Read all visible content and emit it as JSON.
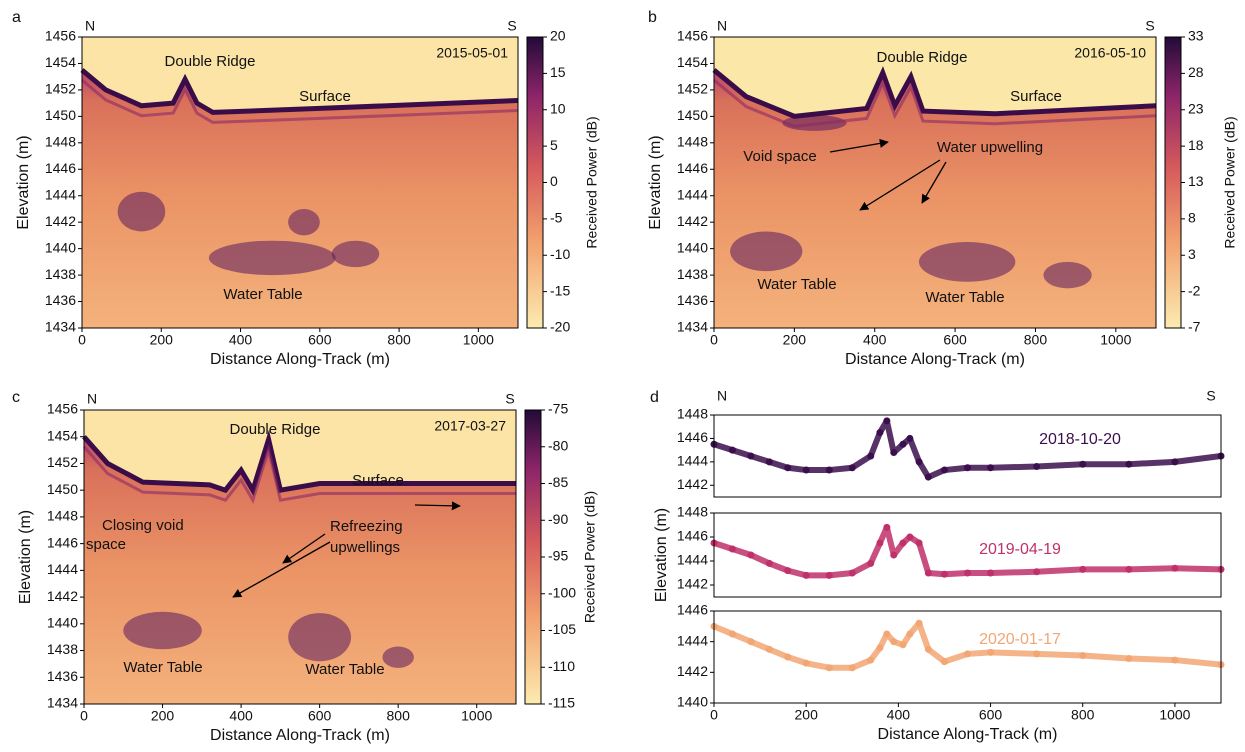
{
  "chart_data": [
    {
      "type": "radargram",
      "panel_label": "a",
      "left_label": "N",
      "right_label": "S",
      "date": "2015-05-01",
      "xlabel": "Distance Along-Track (m)",
      "ylabel": "Elevation (m)",
      "xlim": [
        0,
        1100
      ],
      "xticks": [
        0,
        200,
        400,
        600,
        800,
        1000
      ],
      "ylim": [
        1434,
        1456
      ],
      "yticks": [
        1434,
        1436,
        1438,
        1440,
        1442,
        1444,
        1446,
        1448,
        1450,
        1452,
        1454,
        1456
      ],
      "colorbar": {
        "label": "Received Power (dB)",
        "lim": [
          -20,
          20
        ],
        "ticks": [
          20,
          15,
          10,
          5,
          0,
          -5,
          -10,
          -15,
          -20
        ]
      },
      "annotations": [
        "Double Ridge",
        "Surface",
        "Water Table"
      ]
    },
    {
      "type": "radargram",
      "panel_label": "b",
      "left_label": "N",
      "right_label": "S",
      "date": "2016-05-10",
      "xlabel": "Distance Along-Track (m)",
      "ylabel": "Elevation (m)",
      "xlim": [
        0,
        1100
      ],
      "xticks": [
        0,
        200,
        400,
        600,
        800,
        1000
      ],
      "ylim": [
        1434,
        1456
      ],
      "yticks": [
        1434,
        1436,
        1438,
        1440,
        1442,
        1444,
        1446,
        1448,
        1450,
        1452,
        1454,
        1456
      ],
      "colorbar": {
        "label": "Received Power (dB)",
        "lim": [
          -7,
          33
        ],
        "ticks": [
          33,
          28,
          23,
          18,
          13,
          8,
          3,
          -2,
          -7
        ]
      },
      "annotations": [
        "Double Ridge",
        "Surface",
        "Void space",
        "Water upwelling",
        "Water Table",
        "Water Table"
      ]
    },
    {
      "type": "radargram",
      "panel_label": "c",
      "left_label": "N",
      "right_label": "S",
      "date": "2017-03-27",
      "xlabel": "Distance Along-Track (m)",
      "ylabel": "Elevation (m)",
      "xlim": [
        0,
        1100
      ],
      "xticks": [
        0,
        200,
        400,
        600,
        800,
        1000
      ],
      "ylim": [
        1434,
        1456
      ],
      "yticks": [
        1434,
        1436,
        1438,
        1440,
        1442,
        1444,
        1446,
        1448,
        1450,
        1452,
        1454,
        1456
      ],
      "colorbar": {
        "label": "Received Power (dB)",
        "lim": [
          -115,
          -75
        ],
        "ticks": [
          -75,
          -80,
          -85,
          -90,
          -95,
          -100,
          -105,
          -110,
          -115
        ]
      },
      "annotations": [
        "Double Ridge",
        "Surface",
        "Closing void",
        "space",
        "Refreezing",
        "upwellings",
        "Water Table",
        "Water Table"
      ]
    },
    {
      "type": "scatter",
      "panel_label": "d",
      "left_label": "N",
      "right_label": "S",
      "xlim": [
        0,
        1100
      ],
      "ylim": [
        1441,
        1448
      ],
      "yticks": [
        1442,
        1444,
        1446,
        1448
      ],
      "series": [
        {
          "name": "2018-10-20",
          "color": "#3b0f4e",
          "x": [
            0,
            40,
            80,
            120,
            160,
            200,
            250,
            300,
            340,
            360,
            375,
            390,
            410,
            425,
            445,
            465,
            500,
            550,
            600,
            700,
            800,
            900,
            1000,
            1100
          ],
          "values": [
            1445.5,
            1445,
            1444.5,
            1444,
            1443.5,
            1443.3,
            1443.3,
            1443.5,
            1444.5,
            1446.5,
            1447.5,
            1444.8,
            1445.5,
            1446,
            1444,
            1442.7,
            1443.3,
            1443.5,
            1443.5,
            1443.6,
            1443.8,
            1443.8,
            1444,
            1444.5
          ]
        }
      ]
    },
    {
      "type": "scatter",
      "ylabel": "Elevation (m)",
      "xlim": [
        0,
        1100
      ],
      "ylim": [
        1441,
        1448
      ],
      "yticks": [
        1442,
        1444,
        1446,
        1448
      ],
      "series": [
        {
          "name": "2019-04-19",
          "color": "#c0306a",
          "x": [
            0,
            40,
            80,
            120,
            160,
            200,
            250,
            300,
            340,
            360,
            375,
            390,
            410,
            425,
            445,
            465,
            500,
            550,
            600,
            700,
            800,
            900,
            1000,
            1100
          ],
          "values": [
            1445.5,
            1445,
            1444.5,
            1443.8,
            1443.2,
            1442.8,
            1442.8,
            1443,
            1443.8,
            1445.5,
            1446.8,
            1444.5,
            1445.5,
            1446,
            1445.5,
            1443,
            1442.9,
            1443,
            1443,
            1443.1,
            1443.3,
            1443.3,
            1443.4,
            1443.3
          ]
        }
      ]
    },
    {
      "type": "scatter",
      "xlabel": "Distance Along-Track (m)",
      "xlim": [
        0,
        1100
      ],
      "xticks": [
        0,
        200,
        400,
        600,
        800,
        1000
      ],
      "ylim": [
        1440,
        1446
      ],
      "yticks": [
        1440,
        1442,
        1444,
        1446
      ],
      "series": [
        {
          "name": "2020-01-17",
          "color": "#f2a673",
          "x": [
            0,
            40,
            80,
            120,
            160,
            200,
            250,
            300,
            340,
            360,
            375,
            390,
            410,
            425,
            445,
            465,
            500,
            550,
            600,
            700,
            800,
            900,
            1000,
            1100
          ],
          "values": [
            1445,
            1444.5,
            1444,
            1443.5,
            1443,
            1442.6,
            1442.3,
            1442.3,
            1442.8,
            1443.6,
            1444.5,
            1444,
            1443.8,
            1444.5,
            1445.2,
            1443.5,
            1442.7,
            1443.2,
            1443.3,
            1443.2,
            1443.1,
            1442.9,
            1442.8,
            1442.5
          ]
        }
      ]
    }
  ]
}
